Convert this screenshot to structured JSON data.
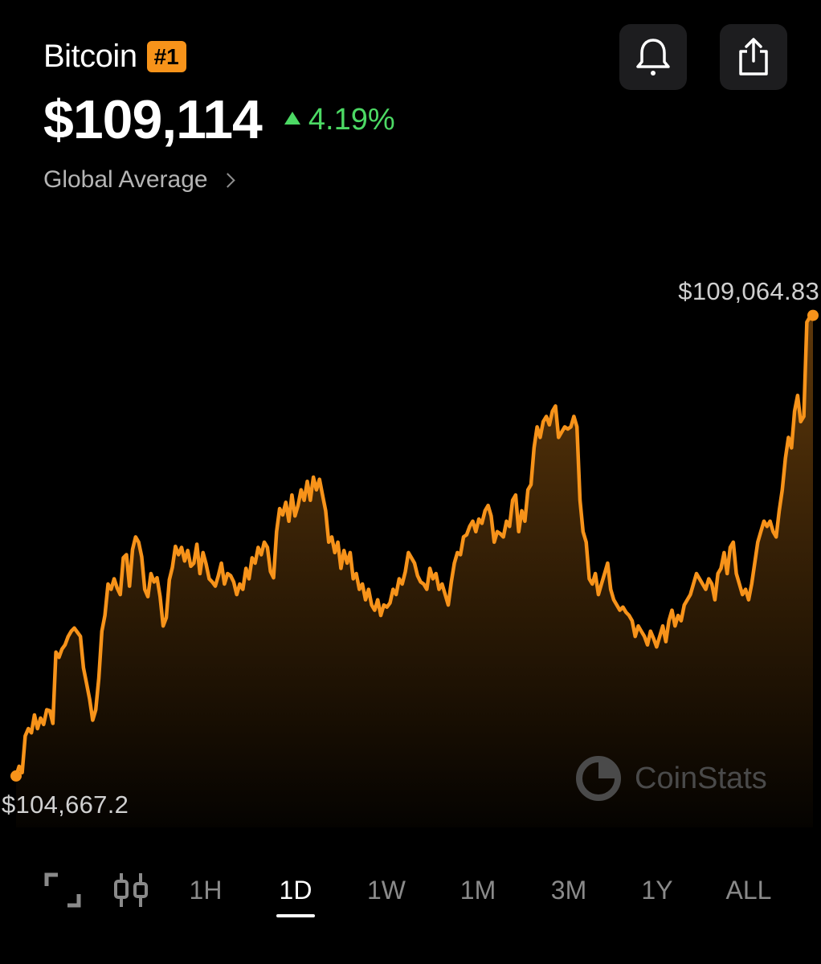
{
  "coin": {
    "name": "Bitcoin",
    "rank": "#1",
    "price": "$109,114",
    "change": "4.19%",
    "source": "Global Average"
  },
  "chart": {
    "max_label": "$109,064.83",
    "min_label": "$104,667.2",
    "line_color": "#f7931a"
  },
  "watermark": "CoinStats",
  "timeframes": [
    "1H",
    "1D",
    "1W",
    "1M",
    "3M",
    "1Y",
    "ALL"
  ],
  "selected_timeframe": "1D",
  "icons": {
    "alert": "bell-icon",
    "share": "share-icon",
    "fullscreen": "fullscreen-icon",
    "candles": "candlestick-icon"
  },
  "chart_data": {
    "type": "area",
    "series": [
      {
        "values": [
          104668,
          104760,
          104700,
          105050,
          105120,
          105080,
          105250,
          105120,
          105220,
          105160,
          105300,
          105290,
          105170,
          105850,
          105800,
          105880,
          105920,
          106000,
          106050,
          106080,
          106040,
          106000,
          105700,
          105550,
          105400,
          105200,
          105300,
          105600,
          106050,
          106200,
          106500,
          106450,
          106550,
          106460,
          106400,
          106750,
          106780,
          106480,
          106830,
          106950,
          106900,
          106760,
          106450,
          106380,
          106600,
          106520,
          106560,
          106380,
          106100,
          106180,
          106540,
          106660,
          106860,
          106780,
          106850,
          106720,
          106820,
          106670,
          106700,
          106880,
          106600,
          106800,
          106690,
          106550,
          106520,
          106480,
          106580,
          106700,
          106500,
          106600,
          106580,
          106520,
          106400,
          106500,
          106450,
          106650,
          106550,
          106750,
          106700,
          106850,
          106780,
          106900,
          106850,
          106620,
          106560,
          107000,
          107220,
          107160,
          107280,
          107100,
          107350,
          107150,
          107250,
          107400,
          107300,
          107480,
          107300,
          107520,
          107400,
          107500,
          107350,
          107200,
          106900,
          106950,
          106800,
          106900,
          106650,
          106820,
          106700,
          106800,
          106550,
          106600,
          106450,
          106500,
          106350,
          106450,
          106300,
          106250,
          106350,
          106200,
          106300,
          106280,
          106320,
          106450,
          106400,
          106550,
          106500,
          106620,
          106800,
          106750,
          106700,
          106580,
          106520,
          106500,
          106450,
          106650,
          106550,
          106600,
          106450,
          106500,
          106400,
          106300,
          106520,
          106700,
          106800,
          106780,
          106950,
          106970,
          107050,
          107100,
          107000,
          107120,
          107080,
          107200,
          107250,
          107150,
          106900,
          107000,
          106980,
          106950,
          107100,
          107050,
          107300,
          107350,
          107000,
          107200,
          107100,
          107400,
          107450,
          107800,
          108000,
          107900,
          108050,
          108100,
          108020,
          108150,
          108200,
          107900,
          107950,
          108000,
          107980,
          108000,
          108100,
          108000,
          107300,
          107000,
          106900,
          106550,
          106500,
          106600,
          106400,
          106500,
          106600,
          106700,
          106450,
          106350,
          106300,
          106250,
          106280,
          106230,
          106200,
          106150,
          106000,
          106100,
          106050,
          106000,
          105920,
          106050,
          105980,
          105900,
          106000,
          106100,
          105950,
          106150,
          106250,
          106100,
          106200,
          106150,
          106300,
          106350,
          106400,
          106500,
          106600,
          106550,
          106500,
          106450,
          106550,
          106500,
          106350,
          106600,
          106650,
          106800,
          106600,
          106850,
          106900,
          106600,
          106500,
          106400,
          106450,
          106350,
          106500,
          106700,
          106900,
          107000,
          107100,
          107050,
          107100,
          107000,
          106950,
          107200,
          107400,
          107700,
          107900,
          107800,
          108150,
          108300,
          108050,
          108100,
          109000,
          109050,
          109065
        ]
      }
    ],
    "ylim": [
      104560,
      109100
    ]
  }
}
